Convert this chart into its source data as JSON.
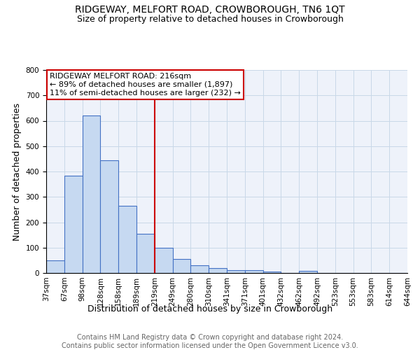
{
  "title": "RIDGEWAY, MELFORT ROAD, CROWBOROUGH, TN6 1QT",
  "subtitle": "Size of property relative to detached houses in Crowborough",
  "xlabel": "Distribution of detached houses by size in Crowborough",
  "ylabel": "Number of detached properties",
  "bin_labels": [
    "37sqm",
    "67sqm",
    "98sqm",
    "128sqm",
    "158sqm",
    "189sqm",
    "219sqm",
    "249sqm",
    "280sqm",
    "310sqm",
    "341sqm",
    "371sqm",
    "401sqm",
    "432sqm",
    "462sqm",
    "492sqm",
    "523sqm",
    "553sqm",
    "583sqm",
    "614sqm",
    "644sqm"
  ],
  "bar_heights": [
    50,
    383,
    622,
    445,
    265,
    155,
    99,
    54,
    30,
    18,
    11,
    12,
    5,
    0,
    8,
    0,
    0,
    0,
    0,
    0
  ],
  "bar_color": "#c6d9f1",
  "bar_edge_color": "#4472c4",
  "property_line_x": 6,
  "property_line_color": "#cc0000",
  "annotation_text": "RIDGEWAY MELFORT ROAD: 216sqm\n← 89% of detached houses are smaller (1,897)\n11% of semi-detached houses are larger (232) →",
  "annotation_box_color": "#cc0000",
  "ylim": [
    0,
    800
  ],
  "yticks": [
    0,
    100,
    200,
    300,
    400,
    500,
    600,
    700,
    800
  ],
  "footer": "Contains HM Land Registry data © Crown copyright and database right 2024.\nContains public sector information licensed under the Open Government Licence v3.0.",
  "grid_color": "#c8d8e8",
  "background_color": "#eef2fa",
  "title_fontsize": 10,
  "subtitle_fontsize": 9,
  "axis_label_fontsize": 9,
  "tick_fontsize": 7.5,
  "annotation_fontsize": 8,
  "footer_fontsize": 7
}
